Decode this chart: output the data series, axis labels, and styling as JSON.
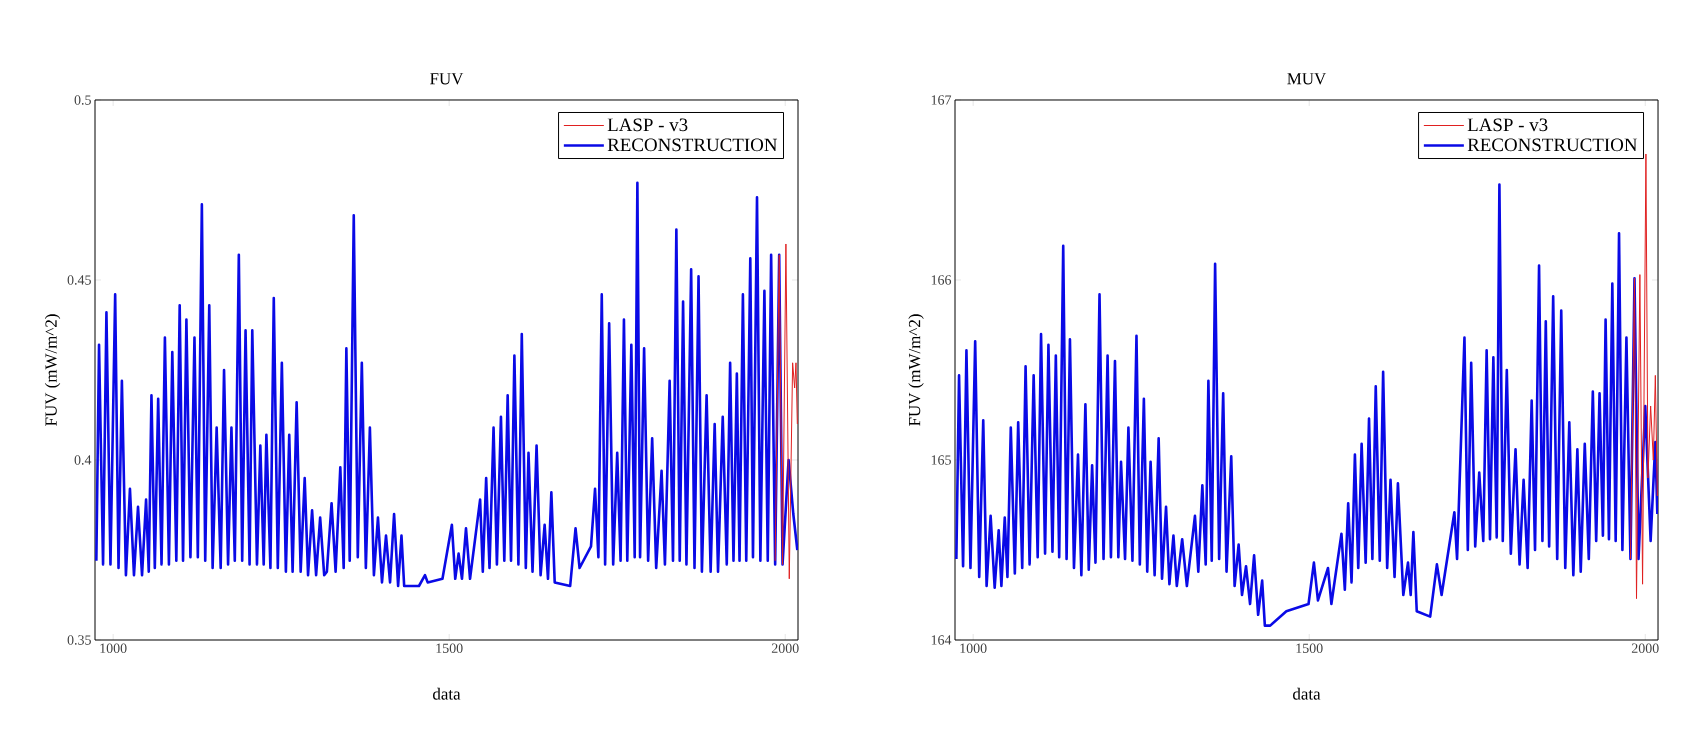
{
  "chart_data": [
    {
      "type": "line",
      "title": "FUV",
      "xlabel": "data",
      "ylabel": "FUV (mW/m^2)",
      "xlim": [
        973,
        2019
      ],
      "ylim": [
        0.35,
        0.5
      ],
      "xticks": [
        1000,
        1500,
        2000
      ],
      "yticks": [
        0.35,
        0.4,
        0.45,
        0.5
      ],
      "legend": "top right",
      "series": [
        {
          "name": "LASP - v3",
          "color": "#e02020",
          "x": [
            1985,
            1991,
            1996,
            2001,
            2006,
            2011,
            2014,
            2016,
            2018
          ],
          "values": [
            0.372,
            0.457,
            0.371,
            0.46,
            0.367,
            0.427,
            0.42,
            0.427,
            0.41
          ]
        },
        {
          "name": "RECONSTRUCTION",
          "color": "#0a0ae6",
          "x": [
            975,
            979,
            985,
            990,
            996,
            1003,
            1008,
            1013,
            1019,
            1025,
            1031,
            1037,
            1043,
            1049,
            1053,
            1057,
            1062,
            1067,
            1072,
            1077,
            1083,
            1088,
            1094,
            1099,
            1104,
            1109,
            1115,
            1121,
            1126,
            1132,
            1137,
            1143,
            1148,
            1154,
            1160,
            1165,
            1171,
            1176,
            1181,
            1187,
            1192,
            1197,
            1203,
            1207,
            1214,
            1219,
            1224,
            1228,
            1234,
            1239,
            1245,
            1251,
            1257,
            1262,
            1267,
            1273,
            1279,
            1285,
            1290,
            1296,
            1302,
            1308,
            1314,
            1318,
            1325,
            1331,
            1338,
            1343,
            1347,
            1352,
            1358,
            1364,
            1370,
            1376,
            1382,
            1388,
            1394,
            1400,
            1406,
            1412,
            1418,
            1424,
            1429,
            1433,
            1455,
            1464,
            1468,
            1490,
            1504,
            1509,
            1514,
            1519,
            1525,
            1531,
            1546,
            1550,
            1555,
            1560,
            1566,
            1571,
            1577,
            1582,
            1587,
            1592,
            1597,
            1603,
            1608,
            1614,
            1618,
            1624,
            1630,
            1636,
            1642,
            1647,
            1652,
            1657,
            1680,
            1688,
            1694,
            1711,
            1717,
            1722,
            1727,
            1732,
            1738,
            1744,
            1750,
            1755,
            1760,
            1765,
            1771,
            1776,
            1780,
            1784,
            1790,
            1796,
            1802,
            1808,
            1816,
            1821,
            1828,
            1833,
            1838,
            1843,
            1848,
            1853,
            1860,
            1865,
            1871,
            1876,
            1883,
            1889,
            1895,
            1900,
            1907,
            1913,
            1918,
            1923,
            1928,
            1932,
            1937,
            1942,
            1948,
            1952,
            1958,
            1963,
            1969,
            1974,
            1979,
            1985,
            1991,
            1996,
            2005,
            2012,
            2018
          ],
          "values": [
            0.372,
            0.432,
            0.371,
            0.441,
            0.371,
            0.446,
            0.37,
            0.422,
            0.368,
            0.392,
            0.368,
            0.387,
            0.368,
            0.389,
            0.369,
            0.418,
            0.37,
            0.417,
            0.371,
            0.434,
            0.371,
            0.43,
            0.372,
            0.443,
            0.372,
            0.439,
            0.373,
            0.434,
            0.373,
            0.471,
            0.372,
            0.443,
            0.37,
            0.409,
            0.37,
            0.425,
            0.371,
            0.409,
            0.372,
            0.457,
            0.372,
            0.436,
            0.371,
            0.436,
            0.371,
            0.404,
            0.371,
            0.407,
            0.37,
            0.445,
            0.37,
            0.427,
            0.369,
            0.407,
            0.369,
            0.416,
            0.369,
            0.395,
            0.368,
            0.386,
            0.368,
            0.384,
            0.368,
            0.369,
            0.388,
            0.369,
            0.398,
            0.37,
            0.431,
            0.372,
            0.468,
            0.373,
            0.427,
            0.37,
            0.409,
            0.368,
            0.384,
            0.366,
            0.379,
            0.366,
            0.385,
            0.365,
            0.379,
            0.365,
            0.365,
            0.368,
            0.366,
            0.367,
            0.382,
            0.367,
            0.374,
            0.367,
            0.381,
            0.367,
            0.389,
            0.369,
            0.395,
            0.37,
            0.409,
            0.371,
            0.412,
            0.372,
            0.418,
            0.372,
            0.429,
            0.371,
            0.435,
            0.37,
            0.402,
            0.369,
            0.404,
            0.368,
            0.382,
            0.367,
            0.391,
            0.366,
            0.365,
            0.381,
            0.37,
            0.376,
            0.392,
            0.373,
            0.446,
            0.371,
            0.438,
            0.371,
            0.402,
            0.372,
            0.439,
            0.372,
            0.432,
            0.373,
            0.477,
            0.373,
            0.431,
            0.372,
            0.406,
            0.37,
            0.397,
            0.371,
            0.422,
            0.372,
            0.464,
            0.372,
            0.444,
            0.371,
            0.453,
            0.37,
            0.451,
            0.369,
            0.418,
            0.369,
            0.41,
            0.369,
            0.412,
            0.371,
            0.427,
            0.372,
            0.424,
            0.372,
            0.446,
            0.372,
            0.456,
            0.373,
            0.473,
            0.372,
            0.447,
            0.372,
            0.457,
            0.371,
            0.457,
            0.371,
            0.4,
            0.385,
            0.375
          ]
        }
      ]
    },
    {
      "type": "line",
      "title": "MUV",
      "xlabel": "data",
      "ylabel": "FUV (mW/m^2)",
      "xlim": [
        973,
        2019
      ],
      "ylim": [
        164,
        167
      ],
      "xticks": [
        1000,
        1500,
        2000
      ],
      "yticks": [
        164,
        165,
        166,
        167
      ],
      "legend": "top right",
      "series": [
        {
          "name": "LASP - v3",
          "color": "#e02020",
          "x": [
            1978,
            1984,
            1987,
            1992,
            1996,
            2001,
            2004,
            2008,
            2012,
            2015,
            2018
          ],
          "values": [
            164.45,
            166.01,
            164.23,
            166.03,
            164.31,
            166.7,
            164.9,
            165.3,
            165.0,
            165.47,
            164.8
          ]
        },
        {
          "name": "RECONSTRUCTION",
          "color": "#0a0ae6",
          "x": [
            975,
            979,
            985,
            990,
            996,
            1003,
            1009,
            1015,
            1020,
            1026,
            1032,
            1038,
            1042,
            1047,
            1051,
            1056,
            1062,
            1067,
            1073,
            1078,
            1084,
            1090,
            1096,
            1101,
            1107,
            1112,
            1118,
            1123,
            1128,
            1134,
            1139,
            1144,
            1150,
            1156,
            1161,
            1167,
            1172,
            1177,
            1182,
            1188,
            1194,
            1200,
            1205,
            1211,
            1216,
            1220,
            1226,
            1231,
            1237,
            1243,
            1248,
            1254,
            1259,
            1264,
            1270,
            1276,
            1281,
            1287,
            1292,
            1298,
            1303,
            1311,
            1318,
            1330,
            1335,
            1341,
            1346,
            1350,
            1355,
            1360,
            1366,
            1372,
            1377,
            1384,
            1389,
            1395,
            1400,
            1406,
            1412,
            1418,
            1424,
            1430,
            1434,
            1442,
            1466,
            1499,
            1507,
            1513,
            1528,
            1533,
            1548,
            1553,
            1558,
            1563,
            1568,
            1573,
            1578,
            1584,
            1589,
            1594,
            1599,
            1605,
            1610,
            1616,
            1621,
            1627,
            1632,
            1640,
            1647,
            1651,
            1655,
            1660,
            1680,
            1690,
            1697,
            1716,
            1720,
            1731,
            1736,
            1741,
            1747,
            1753,
            1759,
            1764,
            1769,
            1774,
            1779,
            1783,
            1788,
            1794,
            1800,
            1807,
            1813,
            1819,
            1825,
            1831,
            1836,
            1842,
            1847,
            1852,
            1857,
            1863,
            1869,
            1875,
            1881,
            1887,
            1893,
            1899,
            1904,
            1910,
            1916,
            1922,
            1927,
            1932,
            1937,
            1941,
            1946,
            1951,
            1956,
            1961,
            1966,
            1972,
            1978,
            1984,
            1990,
            2000,
            2008,
            2015,
            2018
          ],
          "values": [
            164.45,
            165.47,
            164.41,
            165.61,
            164.4,
            165.66,
            164.35,
            165.22,
            164.3,
            164.69,
            164.29,
            164.61,
            164.3,
            164.68,
            164.35,
            165.18,
            164.37,
            165.21,
            164.4,
            165.52,
            164.42,
            165.47,
            164.46,
            165.7,
            164.48,
            165.64,
            164.49,
            165.58,
            164.46,
            166.19,
            164.45,
            165.67,
            164.4,
            165.03,
            164.36,
            165.31,
            164.39,
            164.97,
            164.43,
            165.92,
            164.45,
            165.58,
            164.46,
            165.55,
            164.46,
            164.99,
            164.45,
            165.18,
            164.44,
            165.69,
            164.42,
            165.34,
            164.38,
            164.99,
            164.36,
            165.12,
            164.34,
            164.74,
            164.31,
            164.58,
            164.3,
            164.56,
            164.3,
            164.69,
            164.38,
            164.86,
            164.42,
            165.44,
            164.44,
            166.09,
            164.45,
            165.37,
            164.38,
            165.02,
            164.3,
            164.53,
            164.25,
            164.41,
            164.2,
            164.47,
            164.14,
            164.33,
            164.08,
            164.08,
            164.16,
            164.2,
            164.43,
            164.22,
            164.4,
            164.2,
            164.59,
            164.28,
            164.76,
            164.32,
            165.03,
            164.4,
            165.09,
            164.43,
            165.23,
            164.45,
            165.41,
            164.44,
            165.49,
            164.4,
            164.89,
            164.35,
            164.87,
            164.25,
            164.43,
            164.25,
            164.6,
            164.16,
            164.13,
            164.42,
            164.25,
            164.71,
            164.45,
            165.68,
            164.5,
            165.54,
            164.52,
            164.93,
            164.55,
            165.61,
            164.56,
            165.57,
            164.57,
            166.53,
            164.55,
            165.5,
            164.48,
            165.06,
            164.42,
            164.89,
            164.4,
            165.33,
            164.5,
            166.08,
            164.55,
            165.77,
            164.52,
            165.91,
            164.45,
            165.83,
            164.4,
            165.21,
            164.36,
            165.06,
            164.38,
            165.09,
            164.45,
            165.38,
            164.55,
            165.37,
            164.58,
            165.78,
            164.56,
            165.98,
            164.55,
            166.26,
            164.5,
            165.68,
            164.45,
            166.01,
            164.45,
            165.3,
            164.55,
            165.1,
            164.7
          ]
        }
      ]
    }
  ]
}
